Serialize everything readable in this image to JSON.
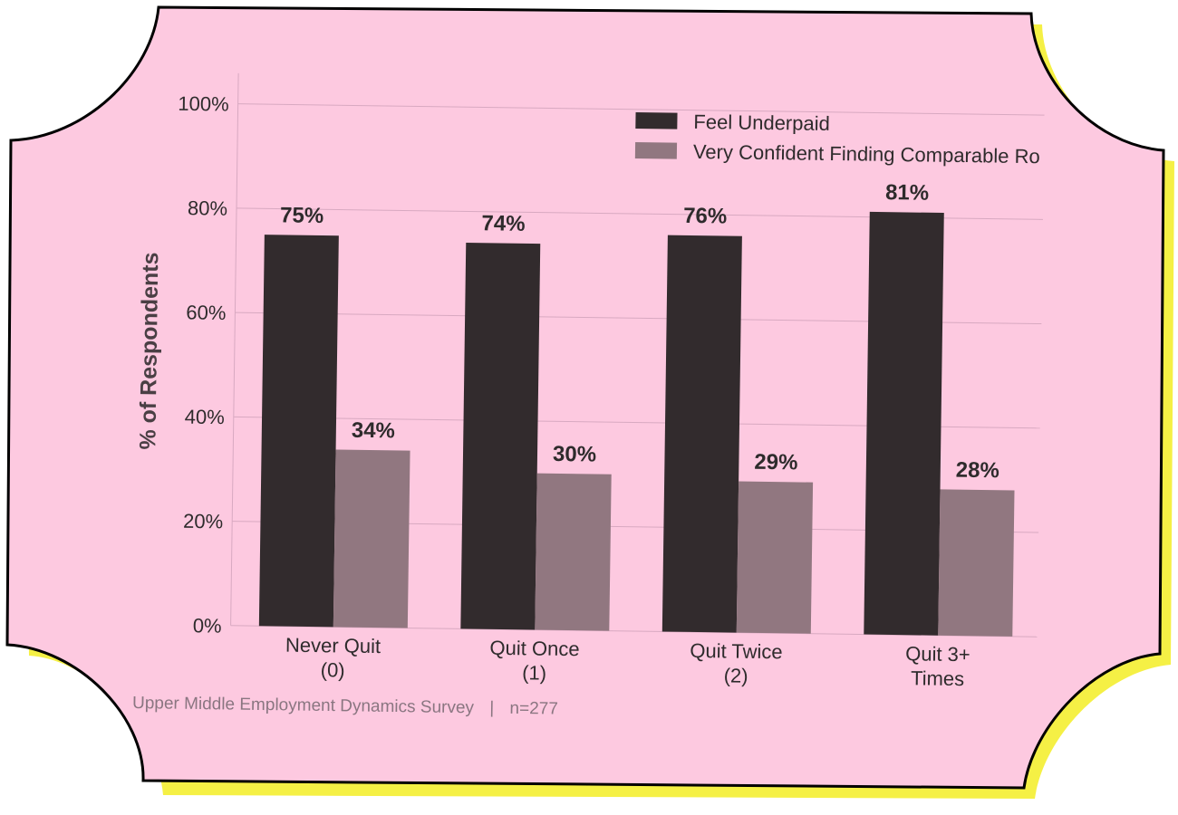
{
  "colors": {
    "background": "#ffffff",
    "card_fill": "#fdc9e0",
    "card_stroke": "#000000",
    "shadow": "#f5f045",
    "grid": "#d8a9c1",
    "bar_dark": "#322b2d",
    "bar_light": "#917780",
    "text": "#2e2b2c",
    "footer_text": "#8a7681"
  },
  "chart_data": {
    "type": "bar",
    "categories": [
      "Never Quit\n(0)",
      "Quit Once\n(1)",
      "Quit Twice\n(2)",
      "Quit 3+\nTimes"
    ],
    "series": [
      {
        "name": "Feel Underpaid",
        "values": [
          75,
          74,
          76,
          81
        ],
        "labels": [
          "75%",
          "74%",
          "76%",
          "81%"
        ],
        "color": "#322b2d"
      },
      {
        "name": "Very Confident Finding Comparable Ro",
        "values": [
          34,
          30,
          29,
          28
        ],
        "labels": [
          "34%",
          "30%",
          "29%",
          "28%"
        ],
        "color": "#917780"
      }
    ],
    "title": "",
    "xlabel": "",
    "ylabel": "% of Respondents",
    "ylim": [
      0,
      105
    ],
    "yticks": [
      0,
      20,
      40,
      60,
      80,
      100
    ],
    "ytick_labels": [
      "0%",
      "20%",
      "40%",
      "60%",
      "80%",
      "100%"
    ],
    "grid": true,
    "legend": "top-right"
  },
  "footer": {
    "source": "Upper Middle Employment Dynamics Survey",
    "separator": "|",
    "sample": "n=277"
  }
}
